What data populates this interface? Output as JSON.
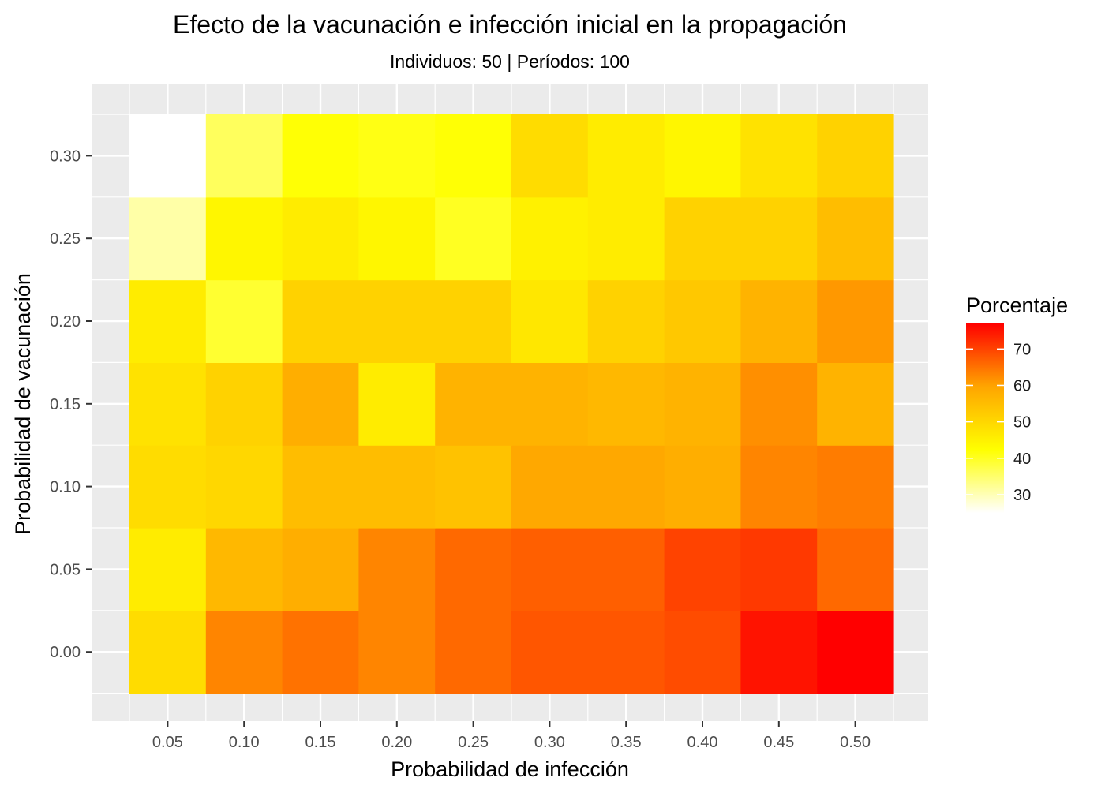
{
  "chart_data": {
    "type": "heatmap",
    "title": "Efecto de la vacunación e infección inicial en la propagación",
    "subtitle": "Individuos: 50 | Períodos: 100",
    "xlabel": "Probabilidad de infección",
    "ylabel": "Probabilidad de vacunación",
    "x": [
      0.05,
      0.1,
      0.15,
      0.2,
      0.25,
      0.3,
      0.35,
      0.4,
      0.45,
      0.5
    ],
    "x_tick_labels": [
      "0.05",
      "0.10",
      "0.15",
      "0.20",
      "0.25",
      "0.30",
      "0.35",
      "0.40",
      "0.45",
      "0.50"
    ],
    "y": [
      0.0,
      0.05,
      0.1,
      0.15,
      0.2,
      0.25,
      0.3
    ],
    "y_tick_labels": [
      "0.00",
      "0.05",
      "0.10",
      "0.15",
      "0.20",
      "0.25",
      "0.30"
    ],
    "values": [
      [
        49,
        63,
        65,
        63,
        66,
        68,
        68,
        69,
        75,
        77
      ],
      [
        46,
        56,
        58,
        63,
        66,
        67,
        67,
        70,
        71,
        66
      ],
      [
        49,
        50,
        55,
        55,
        54,
        59,
        59,
        58,
        63,
        64
      ],
      [
        48,
        51,
        58,
        46,
        57,
        57,
        56,
        57,
        62,
        57
      ],
      [
        46,
        39,
        51,
        51,
        51,
        47,
        51,
        53,
        57,
        61
      ],
      [
        31,
        44,
        46,
        44,
        40,
        45,
        46,
        51,
        51,
        55
      ],
      [
        25,
        36,
        42,
        41,
        42,
        49,
        46,
        44,
        48,
        51
      ]
    ],
    "legend": {
      "title": "Porcentaje",
      "ticks": [
        30,
        40,
        50,
        60,
        70
      ],
      "tick_labels": [
        "30",
        "40",
        "50",
        "60",
        "70"
      ],
      "range": [
        25,
        77
      ],
      "colors": [
        "#ffffff",
        "#ffff00",
        "#ffa500",
        "#ff0000"
      ],
      "position": "right"
    },
    "grid": true,
    "panel_background": "#ebebeb"
  }
}
